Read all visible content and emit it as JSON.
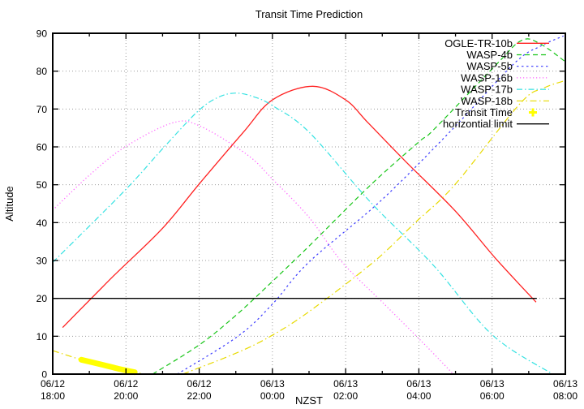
{
  "chart_data": {
    "type": "line",
    "title": "Transit Time Prediction",
    "xlabel": "NZST",
    "ylabel": "Altitude",
    "x_unit": "hours after 06/12 18:00 NZST",
    "xlim_hours": [
      0,
      14
    ],
    "ylim": [
      0,
      90
    ],
    "grid": true,
    "legend_position": "top-right-inside",
    "y_ticks": [
      0,
      10,
      20,
      30,
      40,
      50,
      60,
      70,
      80,
      90
    ],
    "x_ticks": [
      {
        "hour": 0,
        "line1": "06/12",
        "line2": "18:00"
      },
      {
        "hour": 2,
        "line1": "06/12",
        "line2": "20:00"
      },
      {
        "hour": 4,
        "line1": "06/12",
        "line2": "22:00"
      },
      {
        "hour": 6,
        "line1": "06/13",
        "line2": "00:00"
      },
      {
        "hour": 8,
        "line1": "06/13",
        "line2": "02:00"
      },
      {
        "hour": 10,
        "line1": "06/13",
        "line2": "04:00"
      },
      {
        "hour": 12,
        "line1": "06/13",
        "line2": "06:00"
      },
      {
        "hour": 14,
        "line1": "06/13",
        "line2": "08:00"
      }
    ],
    "x_minor_tick_hours": [
      1,
      3,
      5,
      7,
      9,
      11,
      13
    ],
    "series": [
      {
        "name": "OGLE-TR-10b",
        "color": "#ff2020",
        "style": "solid",
        "width": 1.3,
        "segments": [
          [
            [
              0.27,
              12.3
            ],
            [
              1.66,
              25.9
            ],
            [
              3.0,
              38.5
            ],
            [
              4.0,
              50.2
            ],
            [
              5.2,
              63.8
            ],
            [
              6.0,
              72.4
            ],
            [
              7.1,
              76.0
            ],
            [
              8.0,
              72.4
            ],
            [
              8.6,
              66.5
            ],
            [
              9.6,
              56.5
            ],
            [
              11.0,
              43.0
            ],
            [
              12.1,
              30.5
            ],
            [
              13.2,
              19.0
            ]
          ]
        ]
      },
      {
        "name": "WASP-4b",
        "color": "#17c517",
        "style": "dashed",
        "width": 1.2,
        "segments": [
          [
            [
              2.73,
              0
            ],
            [
              4.0,
              7.7
            ],
            [
              5.0,
              15.5
            ],
            [
              6.0,
              24.5
            ],
            [
              7.0,
              33.8
            ],
            [
              8.7,
              50.1
            ],
            [
              10.0,
              61.3
            ],
            [
              10.4,
              64.5
            ],
            [
              12.1,
              81.6
            ],
            [
              12.8,
              88.1
            ],
            [
              13.3,
              87.3
            ],
            [
              14.0,
              82.5
            ]
          ]
        ]
      },
      {
        "name": "WASP-5b",
        "color": "#3c3cff",
        "style": "short-dash",
        "width": 1.2,
        "segments": [
          [
            [
              3.4,
              0
            ],
            [
              5.06,
              10.0
            ],
            [
              6.0,
              18.5
            ],
            [
              7.0,
              29.6
            ],
            [
              8.94,
              45.6
            ],
            [
              10.9,
              64.5
            ],
            [
              12.6,
              82.0
            ],
            [
              13.3,
              86.5
            ],
            [
              13.95,
              89.3
            ]
          ]
        ]
      },
      {
        "name": "WASP-16b",
        "color": "#ff66ff",
        "style": "dotted",
        "width": 1.3,
        "segments": [
          [
            [
              0,
              43.3
            ],
            [
              1.0,
              52.5
            ],
            [
              1.96,
              59.9
            ],
            [
              3.26,
              66.3
            ],
            [
              4.0,
              65.6
            ],
            [
              5.3,
              58.0
            ],
            [
              6.0,
              51.5
            ],
            [
              7.0,
              41.4
            ],
            [
              7.9,
              29.6
            ],
            [
              9.0,
              19.0
            ],
            [
              10.1,
              8.4
            ],
            [
              10.94,
              0
            ]
          ]
        ]
      },
      {
        "name": "WASP-17b",
        "color": "#35e2e2",
        "style": "dash-dot",
        "width": 1.2,
        "segments": [
          [
            [
              0,
              29.5
            ],
            [
              1.96,
              48.4
            ],
            [
              3.0,
              59.5
            ],
            [
              3.94,
              69.2
            ],
            [
              4.5,
              73.0
            ],
            [
              5.0,
              74.2
            ],
            [
              5.5,
              73.2
            ],
            [
              6.0,
              70.9
            ],
            [
              7.0,
              63.9
            ],
            [
              8.7,
              45.2
            ],
            [
              10.4,
              28.7
            ],
            [
              12.0,
              10.4
            ],
            [
              13.65,
              0
            ]
          ]
        ]
      },
      {
        "name": "WASP-18b",
        "color": "#e8da00",
        "style": "dash-dot-long",
        "width": 1.2,
        "segments": [
          [
            [
              0,
              6.2
            ],
            [
              0.78,
              3.8
            ],
            [
              1.5,
              1.9
            ],
            [
              2.24,
              0.5
            ],
            [
              2.5,
              0
            ]
          ],
          [
            [
              3.55,
              0
            ],
            [
              5.0,
              5.5
            ],
            [
              5.95,
              10.0
            ],
            [
              7.0,
              16.5
            ],
            [
              8.76,
              29.6
            ],
            [
              9.9,
              40.0
            ],
            [
              10.98,
              50.0
            ],
            [
              12.76,
              71.4
            ],
            [
              13.4,
              75.5
            ],
            [
              14.0,
              77.5
            ]
          ]
        ]
      },
      {
        "name": "Transit Time",
        "color": "#ffff00",
        "style": "solid",
        "width": 7,
        "marker": "plus",
        "segments": [
          [
            [
              0.78,
              3.8
            ],
            [
              1.3,
              2.6
            ],
            [
              1.8,
              1.4
            ],
            [
              2.24,
              0.5
            ]
          ]
        ]
      },
      {
        "name": "horizontial limit",
        "color": "#000000",
        "style": "solid",
        "width": 1.3,
        "segments": [
          [
            [
              0,
              20
            ],
            [
              13.22,
              20
            ]
          ]
        ]
      }
    ]
  }
}
